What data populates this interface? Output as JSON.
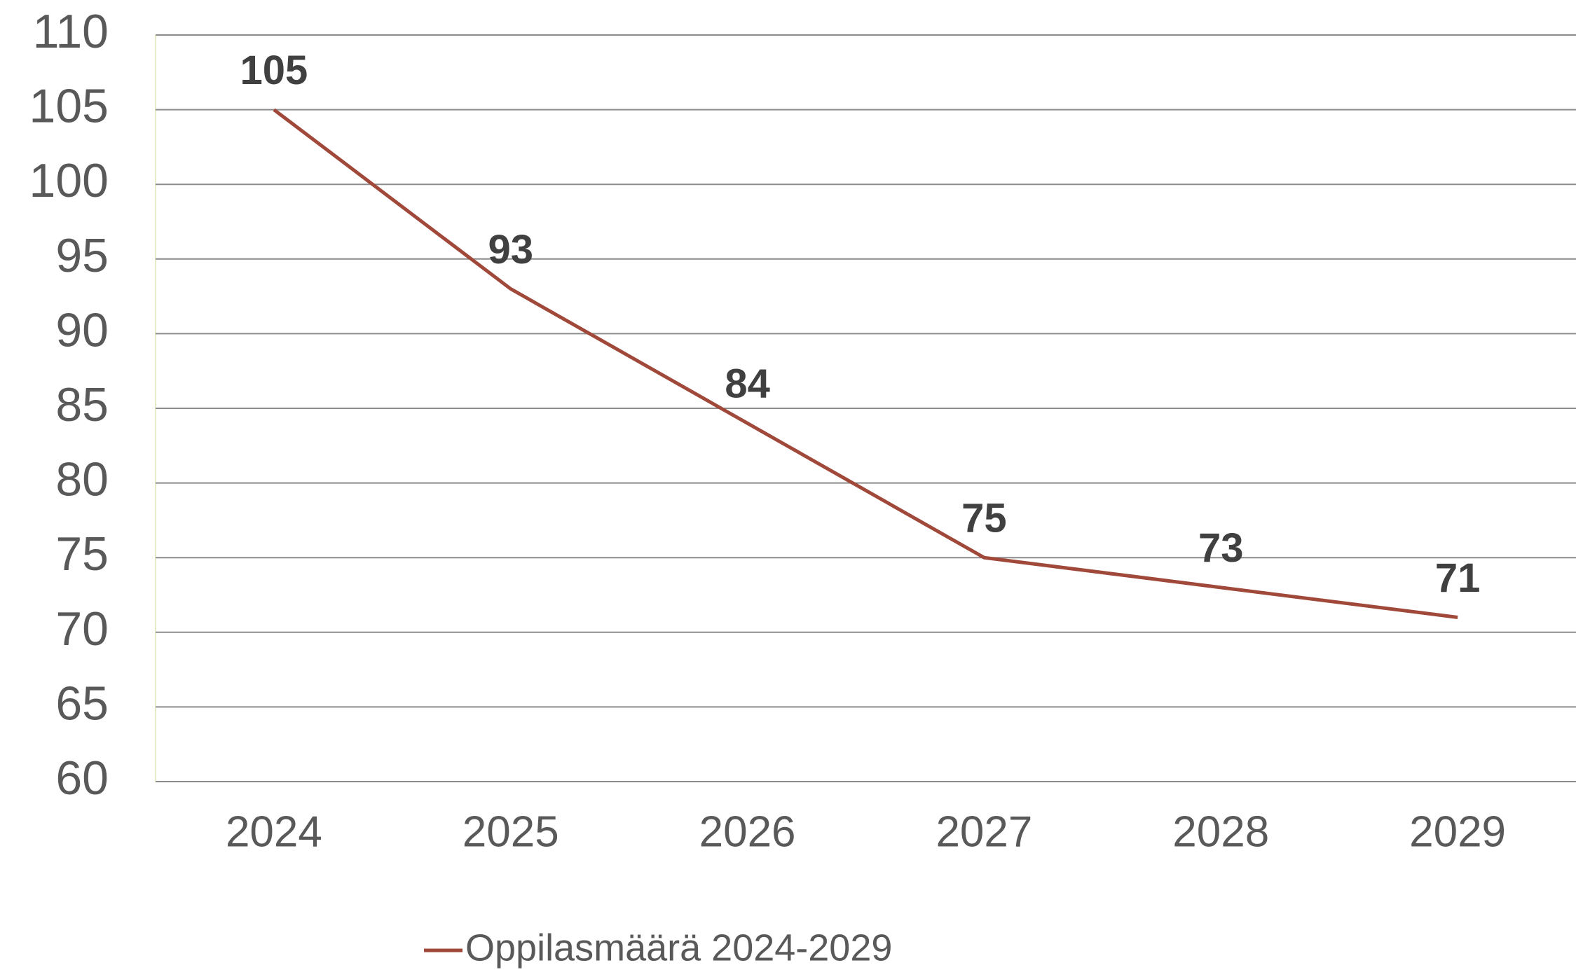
{
  "chart_data": {
    "type": "line",
    "categories": [
      "2024",
      "2025",
      "2026",
      "2027",
      "2028",
      "2029"
    ],
    "series": [
      {
        "name": "Oppilasmäärä 2024-2029",
        "color": "#a0493a",
        "values": [
          105,
          93,
          84,
          75,
          73,
          71
        ]
      }
    ],
    "ylim": [
      60,
      110
    ],
    "yticks": [
      60,
      65,
      70,
      75,
      80,
      85,
      90,
      95,
      100,
      105,
      110
    ],
    "grid": true,
    "legend": "bottom"
  }
}
